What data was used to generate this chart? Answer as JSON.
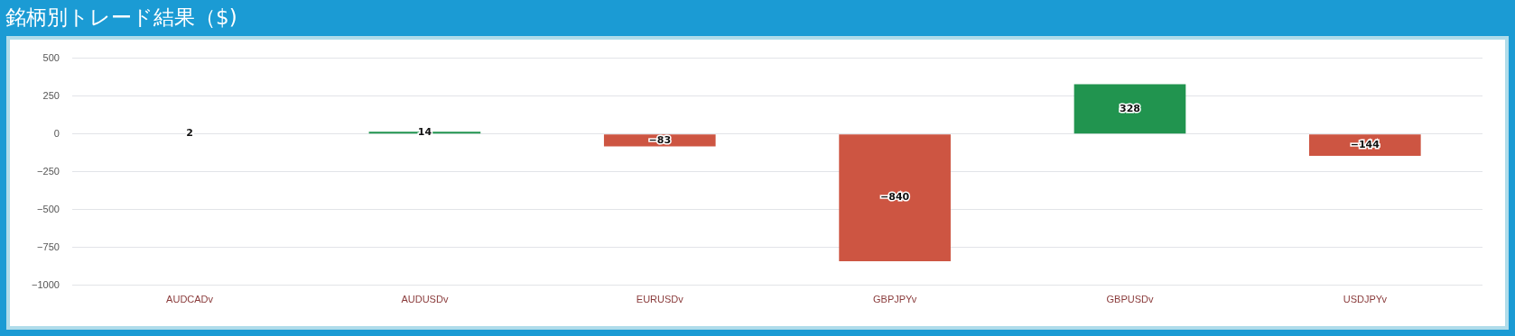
{
  "chart_data": {
    "type": "bar",
    "title": "銘柄別トレード結果（$)",
    "categories": [
      "AUDCADv",
      "AUDUSDv",
      "EURUSDv",
      "GBPJPYv",
      "GBPUSDv",
      "USDJPYv"
    ],
    "values": [
      2,
      14,
      -83,
      -840,
      328,
      -144
    ],
    "colors": [
      "#21944f",
      "#21944f",
      "#cd5542",
      "#cd5542",
      "#21944f",
      "#cd5542"
    ],
    "value_labels": [
      "2",
      "14",
      "−83",
      "−840",
      "328",
      "−144"
    ],
    "ylim": [
      -1000,
      500
    ],
    "yticks": [
      {
        "value": -1000,
        "label": "−1000"
      },
      {
        "value": -750,
        "label": "−750"
      },
      {
        "value": -500,
        "label": "−500"
      },
      {
        "value": -250,
        "label": "−250"
      },
      0,
      250,
      500
    ],
    "grid": "y",
    "legend": false
  }
}
